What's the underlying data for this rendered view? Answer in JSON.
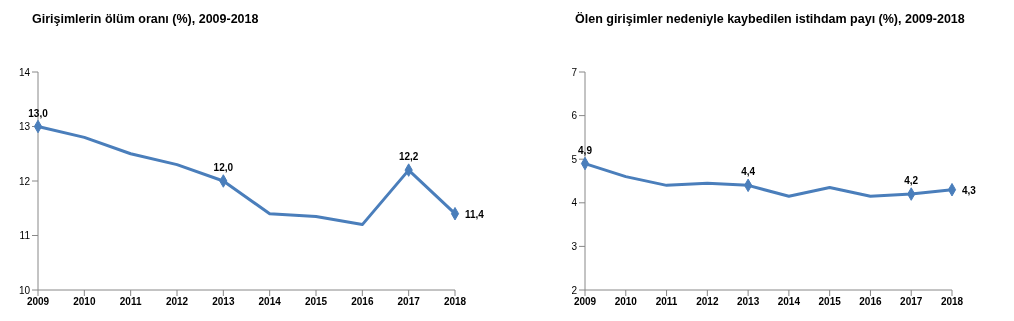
{
  "chart_data": [
    {
      "type": "line",
      "title": "Girişimlerin ölüm oranı (%), 2009-2018",
      "categories": [
        "2009",
        "2010",
        "2011",
        "2012",
        "2013",
        "2014",
        "2015",
        "2016",
        "2017",
        "2018"
      ],
      "series": [
        {
          "color": "#4a7ebb",
          "values": [
            13.0,
            12.8,
            12.5,
            12.3,
            12.0,
            11.4,
            11.35,
            11.2,
            12.2,
            11.4
          ],
          "value_labels": [
            "13,0",
            null,
            null,
            null,
            "12,0",
            null,
            null,
            null,
            "12,2",
            "11,4"
          ]
        }
      ],
      "ylim": [
        10,
        14
      ],
      "yticks": [
        10,
        11,
        12,
        13,
        14
      ],
      "grid": false,
      "legend": false,
      "line_style": "solid"
    },
    {
      "type": "line",
      "title": "Ölen girişimler nedeniyle kaybedilen istihdam payı (%), 2009-2018",
      "categories": [
        "2009",
        "2010",
        "2011",
        "2012",
        "2013",
        "2014",
        "2015",
        "2016",
        "2017",
        "2018"
      ],
      "series": [
        {
          "color": "#4a7ebb",
          "values": [
            4.9,
            4.6,
            4.4,
            4.45,
            4.4,
            4.15,
            4.35,
            4.15,
            4.2,
            4.3
          ],
          "value_labels": [
            "4,9",
            null,
            null,
            null,
            "4,4",
            null,
            null,
            null,
            "4,2",
            "4,3"
          ]
        }
      ],
      "ylim": [
        2,
        7
      ],
      "yticks": [
        2,
        3,
        4,
        5,
        6,
        7
      ],
      "grid": false,
      "legend": false,
      "line_style": "solid"
    }
  ]
}
